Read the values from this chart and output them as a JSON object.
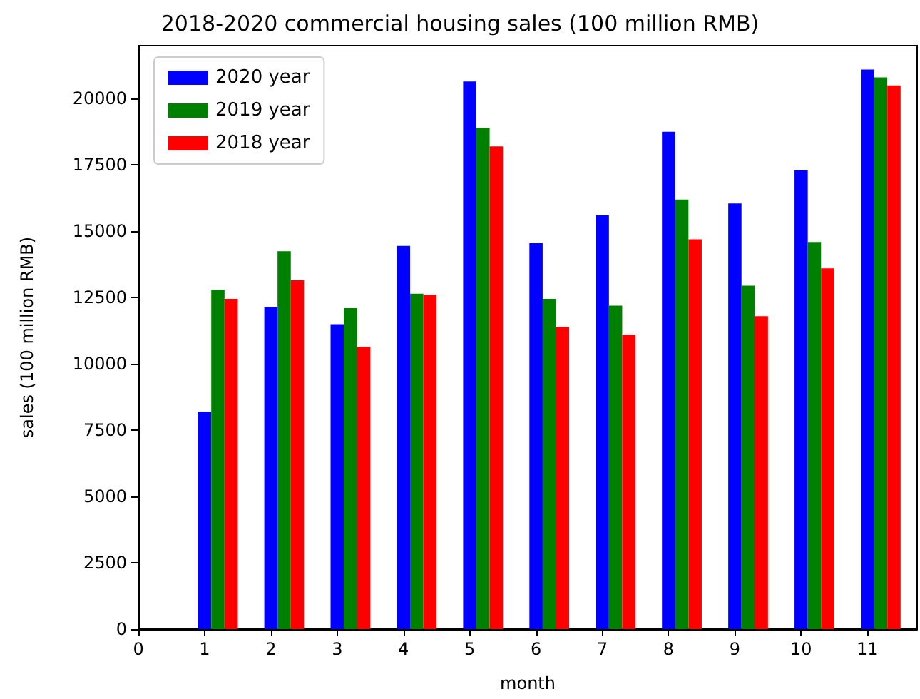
{
  "chart_data": {
    "type": "bar",
    "title": "2018-2020 commercial housing sales (100 million RMB)",
    "xlabel": "month",
    "ylabel": "sales (100 million RMB)",
    "xlim": [
      0,
      11.75
    ],
    "xticks": [
      0,
      1,
      2,
      3,
      4,
      5,
      6,
      7,
      8,
      9,
      10,
      11
    ],
    "ylim": [
      0,
      22000
    ],
    "yticks": [
      0,
      2500,
      5000,
      7500,
      10000,
      12500,
      15000,
      17500,
      20000
    ],
    "series": [
      {
        "name": "2020 year",
        "color": "#0000ff",
        "x": [
          1,
          2,
          3,
          4,
          5,
          6,
          7,
          8,
          9,
          10,
          11
        ],
        "values": [
          8200,
          12150,
          11500,
          14450,
          20650,
          14550,
          15600,
          18750,
          16050,
          17300,
          21100
        ]
      },
      {
        "name": "2019 year",
        "color": "#008000",
        "x": [
          1.2,
          2.2,
          3.2,
          4.2,
          5.2,
          6.2,
          7.2,
          8.2,
          9.2,
          10.2,
          11.2
        ],
        "values": [
          12800,
          14250,
          12100,
          12650,
          18900,
          12450,
          12200,
          16200,
          12950,
          14600,
          20800
        ]
      },
      {
        "name": "2018 year",
        "color": "#ff0000",
        "x": [
          1.4,
          2.4,
          3.4,
          4.4,
          5.4,
          6.4,
          7.4,
          8.4,
          9.4,
          10.4,
          11.4
        ],
        "values": [
          12450,
          13150,
          10650,
          12600,
          18200,
          11400,
          11100,
          14700,
          11800,
          13600,
          20500
        ]
      }
    ],
    "legend": "top left",
    "grid": false
  }
}
